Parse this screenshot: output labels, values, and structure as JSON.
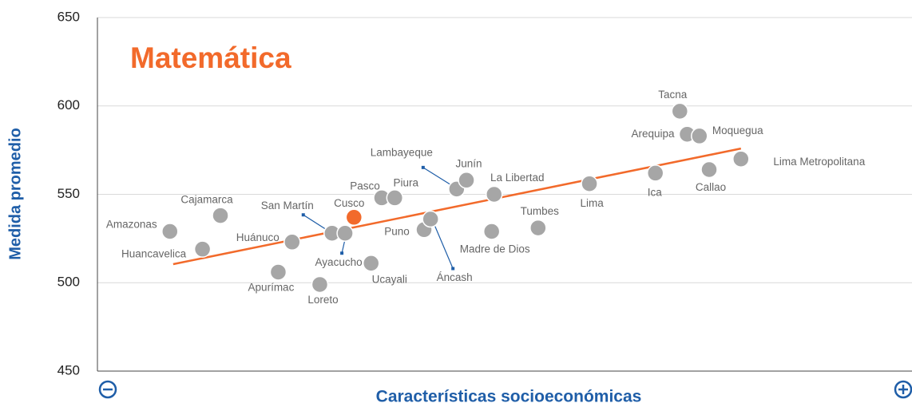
{
  "chart_data": {
    "type": "scatter",
    "title": "Matemática",
    "title_color": "#f26a2b",
    "ylabel": "Medida promedio",
    "xlabel": "Características socioeconómicas",
    "axis_label_color": "#1f5ea8",
    "labels": [
      "Amazonas",
      "Huancavelica",
      "Cajamarca",
      "Apurímac",
      "Loreto",
      "Huánuco",
      "San Martín",
      "Ayacucho",
      "Cusco",
      "Pasco",
      "Piura",
      "Ucayali",
      "Puno",
      "Áncash",
      "Lambayeque",
      "Junín",
      "La Libertad",
      "Madre de Dios",
      "Tumbes",
      "Lima",
      "Ica",
      "Tacna",
      "Arequipa",
      "Moquegua",
      "Callao",
      "Lima Metropolitana"
    ],
    "x": [
      8.9,
      12.9,
      15.1,
      22.2,
      27.3,
      23.9,
      28.8,
      30.4,
      31.5,
      34.9,
      36.5,
      33.6,
      40.1,
      40.9,
      44.1,
      45.3,
      48.7,
      48.4,
      54.1,
      60.4,
      68.5,
      71.5,
      72.4,
      73.9,
      75.1,
      79.0
    ],
    "values": [
      529,
      519,
      538,
      506,
      499,
      523,
      528,
      528,
      537,
      548,
      548,
      511,
      530,
      536,
      553,
      558,
      550,
      529,
      531,
      556,
      562,
      597,
      584,
      583,
      564,
      570
    ],
    "colors": [
      "#a6a6a6",
      "#a6a6a6",
      "#a6a6a6",
      "#a6a6a6",
      "#a6a6a6",
      "#a6a6a6",
      "#a6a6a6",
      "#a6a6a6",
      "#f26a2b",
      "#a6a6a6",
      "#a6a6a6",
      "#a6a6a6",
      "#a6a6a6",
      "#a6a6a6",
      "#a6a6a6",
      "#a6a6a6",
      "#a6a6a6",
      "#a6a6a6",
      "#a6a6a6",
      "#a6a6a6",
      "#a6a6a6",
      "#a6a6a6",
      "#a6a6a6",
      "#a6a6a6",
      "#a6a6a6",
      "#a6a6a6"
    ],
    "trend": {
      "x": [
        9.3,
        79.0
      ],
      "values": [
        510.5,
        575.9
      ],
      "color": "#f26a2b"
    },
    "xlim": [
      0,
      100
    ],
    "ylim": [
      450,
      650
    ],
    "yticks": [
      450,
      500,
      550,
      600,
      650
    ],
    "grid": true
  }
}
